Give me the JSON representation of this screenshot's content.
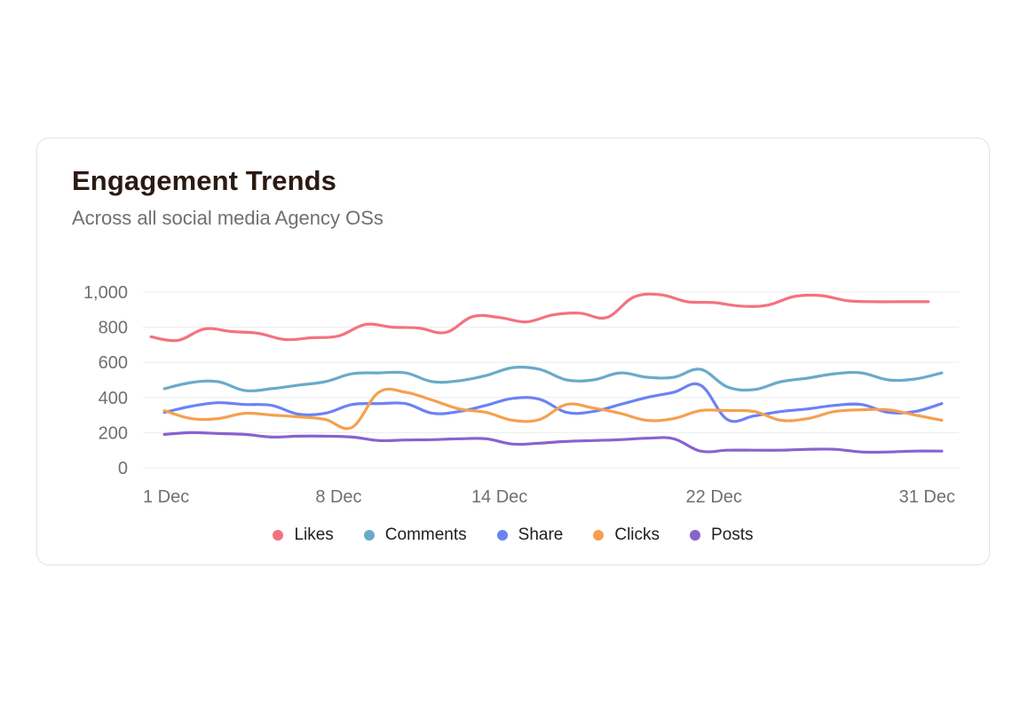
{
  "card": {
    "title": "Engagement Trends",
    "subtitle": "Across all social media Agency OSs"
  },
  "chart_data": {
    "type": "line",
    "title": "Engagement Trends",
    "subtitle": "Across all social media Agency OSs",
    "xlabel": "",
    "ylabel": "",
    "ylim": [
      0,
      1000
    ],
    "yticks": [
      0,
      200,
      400,
      600,
      800,
      1000
    ],
    "ytick_labels": [
      "0",
      "200",
      "400",
      "600",
      "800",
      "1,000"
    ],
    "xticks": [
      1,
      8,
      14,
      22,
      31
    ],
    "xtick_labels": [
      "1 Dec",
      "8 Dec",
      "14 Dec",
      "22 Dec",
      "31 Dec"
    ],
    "grid": true,
    "legend_position": "bottom-center",
    "series": [
      {
        "name": "Likes",
        "color": "#f4727f",
        "x": [
          1,
          2,
          3,
          4,
          5,
          6,
          7,
          8,
          9,
          10,
          11,
          12,
          13,
          14,
          15,
          16,
          17,
          18,
          19,
          20,
          21,
          22,
          23,
          24,
          25,
          26,
          27,
          28,
          29,
          30
        ],
        "y": [
          745,
          725,
          790,
          775,
          765,
          730,
          740,
          750,
          815,
          800,
          795,
          770,
          860,
          855,
          830,
          870,
          880,
          855,
          970,
          985,
          945,
          940,
          920,
          925,
          975,
          980,
          950,
          945,
          945,
          945
        ]
      },
      {
        "name": "Comments",
        "color": "#6aaac9",
        "x": [
          1.5,
          2.5,
          3.5,
          4.5,
          5.5,
          6.5,
          7.5,
          8.5,
          9.5,
          10.5,
          11.5,
          12.5,
          13.5,
          14.5,
          15.5,
          16.5,
          17.5,
          18.5,
          19.5,
          20.5,
          21.5,
          22.5,
          23.5,
          24.5,
          25.5,
          26.5,
          27.5,
          28.5,
          29.5,
          30.5
        ],
        "y": [
          450,
          485,
          490,
          440,
          450,
          470,
          490,
          535,
          540,
          540,
          490,
          495,
          525,
          570,
          560,
          500,
          500,
          540,
          515,
          515,
          560,
          460,
          445,
          490,
          510,
          535,
          540,
          500,
          505,
          540
        ]
      },
      {
        "name": "Share",
        "color": "#6b82f5",
        "x": [
          1.5,
          2.5,
          3.5,
          4.5,
          5.5,
          6.5,
          7.5,
          8.5,
          9.5,
          10.5,
          11.5,
          12.5,
          13.5,
          14.5,
          15.5,
          16.5,
          17.5,
          18.5,
          19.5,
          20.5,
          21.5,
          22.5,
          23.5,
          24.5,
          25.5,
          26.5,
          27.5,
          28.5,
          29.5,
          30.5
        ],
        "y": [
          315,
          350,
          370,
          360,
          355,
          305,
          310,
          360,
          365,
          365,
          310,
          320,
          355,
          395,
          390,
          315,
          320,
          360,
          400,
          430,
          470,
          275,
          295,
          320,
          335,
          355,
          360,
          315,
          320,
          365
        ]
      },
      {
        "name": "Clicks",
        "color": "#f5a04f",
        "x": [
          1.5,
          2.5,
          3.5,
          4.5,
          5.5,
          6.5,
          7.5,
          8.5,
          9.5,
          10.5,
          11.5,
          12.5,
          13.5,
          14.5,
          15.5,
          16.5,
          17.5,
          18.5,
          19.5,
          20.5,
          21.5,
          22.5,
          23.5,
          24.5,
          25.5,
          26.5,
          27.5,
          28.5,
          29.5,
          30.5
        ],
        "y": [
          325,
          280,
          280,
          310,
          300,
          290,
          275,
          230,
          430,
          430,
          385,
          335,
          315,
          270,
          275,
          360,
          340,
          310,
          270,
          280,
          325,
          325,
          320,
          270,
          280,
          320,
          330,
          330,
          300,
          270
        ]
      },
      {
        "name": "Posts",
        "color": "#8a62cf",
        "x": [
          1.5,
          2.5,
          3.5,
          4.5,
          5.5,
          6.5,
          7.5,
          8.5,
          9.5,
          10.5,
          11.5,
          12.5,
          13.5,
          14.5,
          15.5,
          16.5,
          17.5,
          18.5,
          19.5,
          20.5,
          21.5,
          22.5,
          23.5,
          24.5,
          25.5,
          26.5,
          27.5,
          28.5,
          29.5,
          30.5
        ],
        "y": [
          190,
          200,
          195,
          190,
          175,
          180,
          180,
          175,
          155,
          158,
          160,
          165,
          165,
          135,
          140,
          150,
          155,
          160,
          168,
          165,
          95,
          100,
          100,
          100,
          105,
          105,
          90,
          90,
          95,
          95
        ]
      }
    ]
  }
}
